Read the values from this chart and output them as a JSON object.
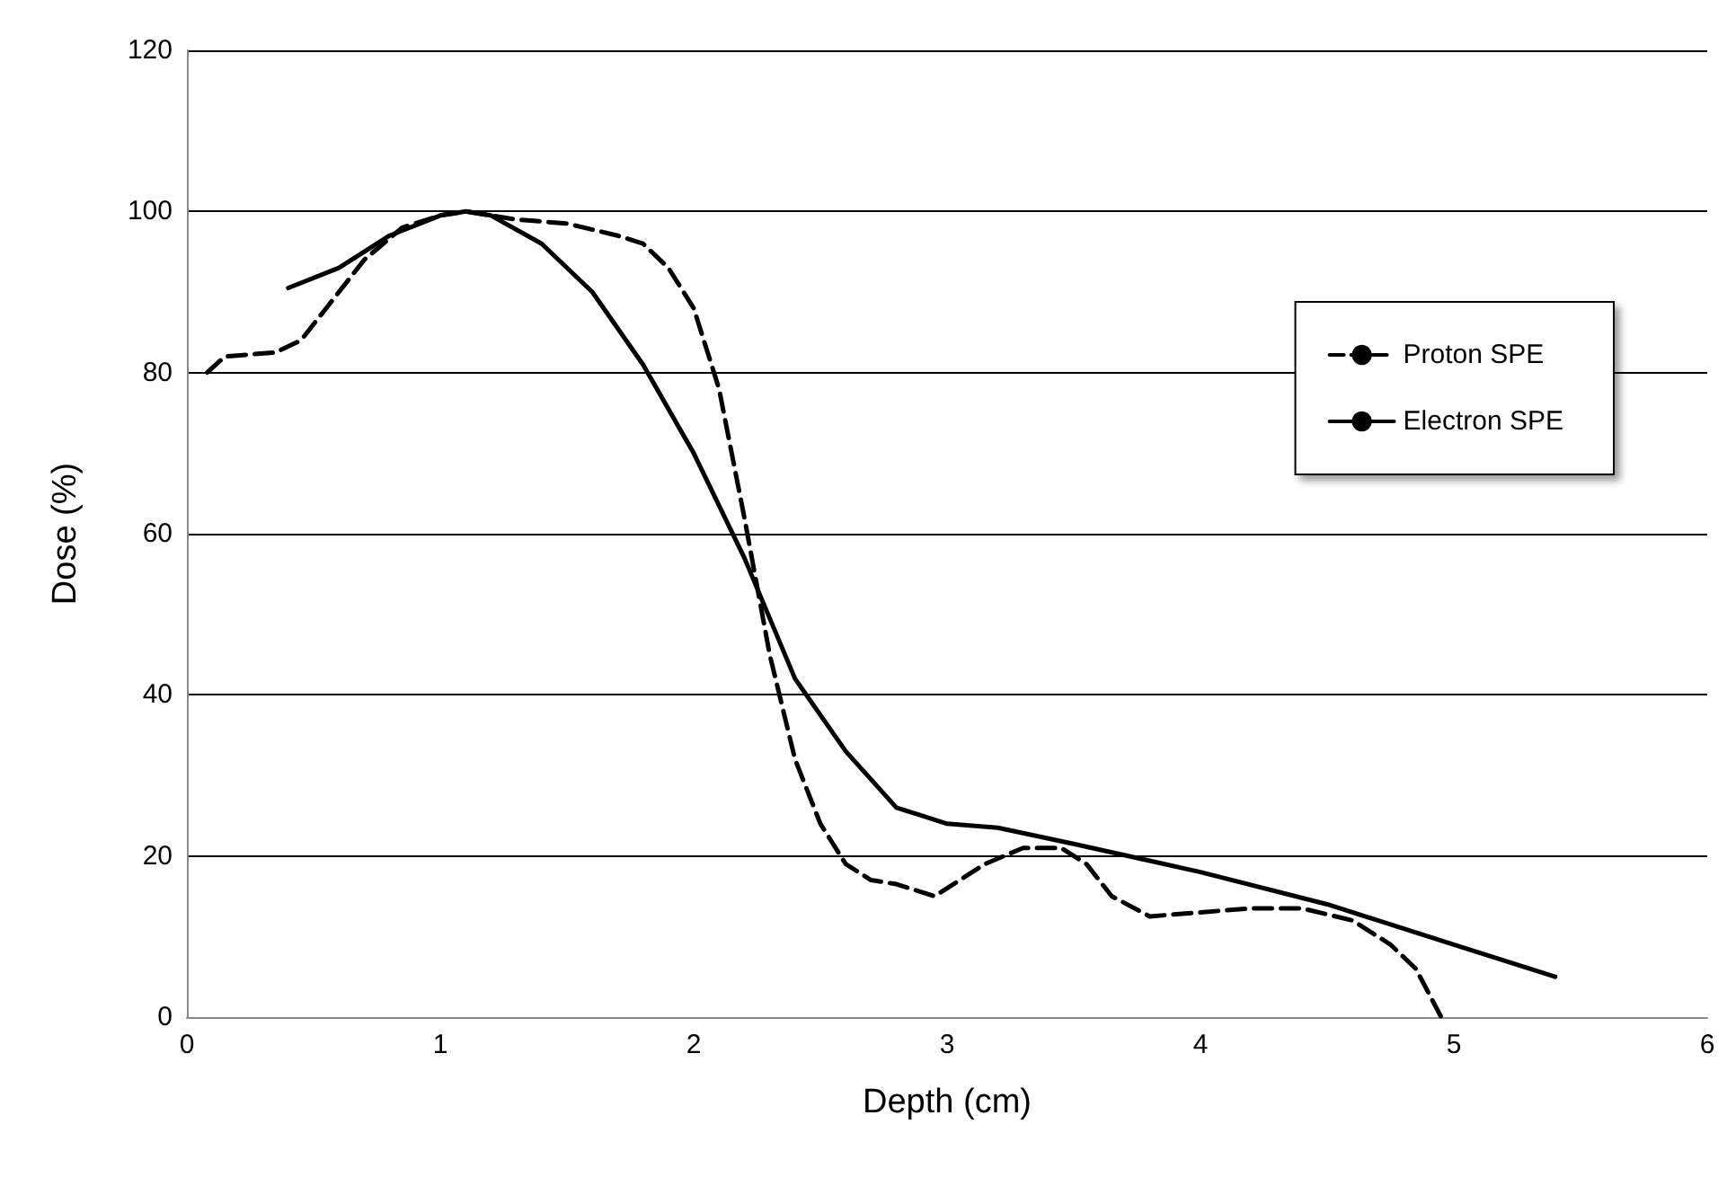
{
  "chart_data": {
    "type": "line",
    "xlabel": "Depth (cm)",
    "ylabel": "Dose (%)",
    "xlim": [
      0,
      6
    ],
    "xticks": [
      0,
      1,
      2,
      3,
      4,
      5,
      6
    ],
    "ylim": [
      0,
      120
    ],
    "yticks": [
      0,
      20,
      40,
      60,
      80,
      100,
      120
    ],
    "grid": "y",
    "legend": "right",
    "marker": "none",
    "series": [
      {
        "name": "Proton SPE",
        "color": "#000000",
        "line_style": "dashed",
        "x": [
          0.08,
          0.15,
          0.35,
          0.45,
          0.55,
          0.7,
          0.85,
          1.0,
          1.1,
          1.3,
          1.5,
          1.7,
          1.8,
          1.9,
          2.0,
          2.1,
          2.2,
          2.3,
          2.4,
          2.5,
          2.6,
          2.7,
          2.8,
          2.95,
          3.05,
          3.15,
          3.3,
          3.45,
          3.55,
          3.65,
          3.8,
          4.0,
          4.2,
          4.4,
          4.6,
          4.75,
          4.85,
          4.95
        ],
        "values": [
          80,
          82,
          82.5,
          84,
          88,
          94,
          98,
          99.5,
          100,
          99,
          98.5,
          97,
          96,
          93,
          88,
          78,
          62,
          45,
          32,
          24,
          19,
          17,
          16.5,
          15,
          17,
          19,
          21,
          21,
          19,
          15,
          12.5,
          13,
          13.5,
          13.5,
          12,
          9,
          6,
          0
        ]
      },
      {
        "name": "Electron SPE",
        "color": "#000000",
        "line_style": "solid",
        "x": [
          0.4,
          0.6,
          0.8,
          1.0,
          1.1,
          1.2,
          1.4,
          1.6,
          1.8,
          2.0,
          2.2,
          2.4,
          2.6,
          2.8,
          3.0,
          3.2,
          3.5,
          4.0,
          4.5,
          5.0,
          5.4
        ],
        "values": [
          90.5,
          93,
          97,
          99.5,
          100,
          99.5,
          96,
          90,
          81,
          70,
          57,
          42,
          33,
          26,
          24,
          23.5,
          21.5,
          18,
          14,
          9,
          5
        ]
      }
    ]
  }
}
